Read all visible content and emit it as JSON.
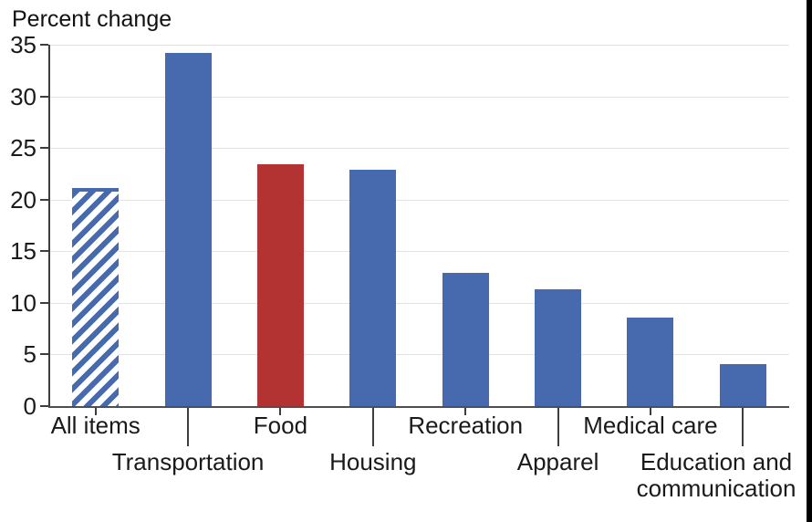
{
  "chart_data": {
    "type": "bar",
    "title": "Percent change",
    "categories": [
      "All items",
      "Transportation",
      "Food",
      "Housing",
      "Recreation",
      "Apparel",
      "Medical care",
      "Education and communication"
    ],
    "values": [
      21.1,
      34.2,
      23.4,
      22.9,
      12.9,
      11.3,
      8.6,
      4.1
    ],
    "bar_styles": [
      "hatched-blue",
      "solid-blue",
      "solid-red",
      "solid-blue",
      "solid-blue",
      "solid-blue",
      "solid-blue",
      "solid-blue"
    ],
    "yticks": [
      0,
      5,
      10,
      15,
      20,
      25,
      30,
      35
    ],
    "ylim": [
      0,
      35
    ],
    "xlabel": "",
    "ylabel": "Percent change",
    "grid": "horizontal-only",
    "legend": "none",
    "label_rows": [
      "near",
      "far",
      "near",
      "far",
      "near",
      "far",
      "near",
      "far"
    ],
    "colors": {
      "bar_blue": "#4769ad",
      "bar_red": "#b23331",
      "gridline": "#e3e3e3",
      "axis": "#3d3d3d",
      "text": "#1a1a1a",
      "screen_edge": "#000000"
    }
  }
}
